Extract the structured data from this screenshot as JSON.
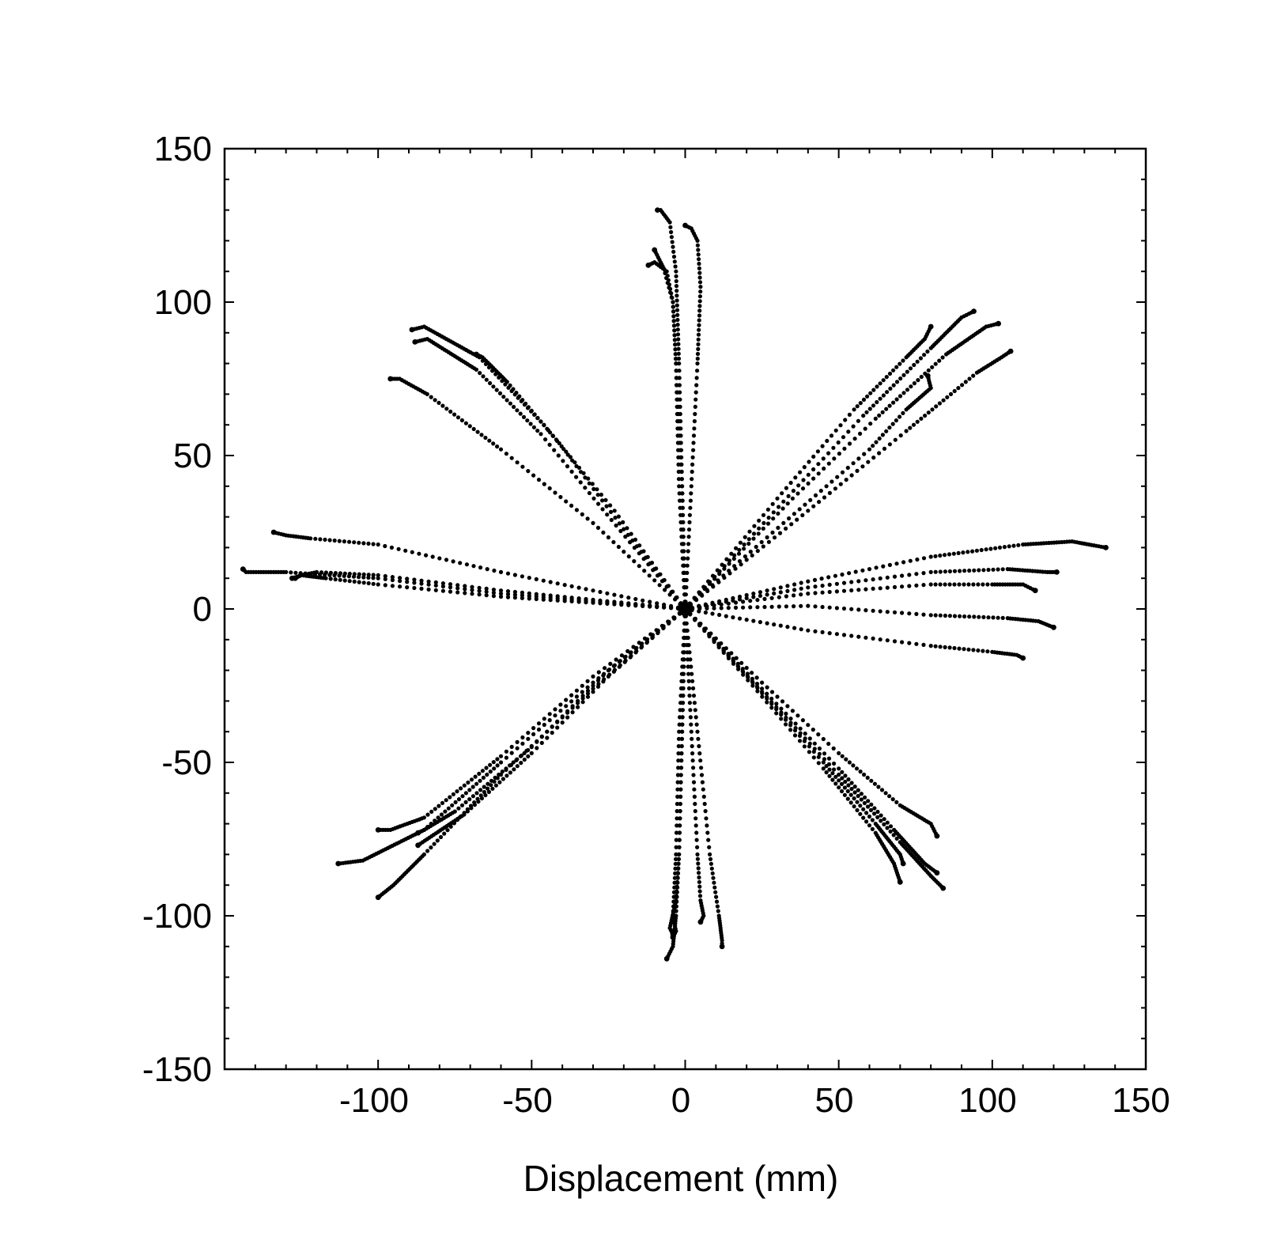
{
  "chart_data": {
    "type": "scatter",
    "title": "",
    "xlabel": "Displacement (mm)",
    "ylabel": "",
    "xlim": [
      -150,
      150
    ],
    "ylim": [
      -150,
      150
    ],
    "xticks": [
      -100,
      -50,
      0,
      50,
      100,
      150
    ],
    "yticks": [
      150,
      100,
      50,
      0,
      -50,
      -100,
      -150
    ],
    "xtick_labels": [
      "-100",
      "-50",
      "0",
      "50",
      "100",
      "150"
    ],
    "ytick_labels": [
      "150",
      "100",
      "50",
      "0",
      "-50",
      "-100",
      "-150"
    ],
    "grid": false,
    "legend": "none",
    "marker_color": "#000000",
    "series": [
      {
        "values": [
          [
            0,
            0
          ],
          [
            -2,
            40
          ],
          [
            -3,
            80
          ],
          [
            -4,
            100
          ],
          [
            -7,
            111
          ],
          [
            -8,
            113
          ],
          [
            -10,
            117
          ]
        ]
      },
      {
        "values": [
          [
            0,
            0
          ],
          [
            -1,
            40
          ],
          [
            -3,
            80
          ],
          [
            -4,
            100
          ],
          [
            -6,
            110
          ],
          [
            -10,
            113
          ],
          [
            -12,
            112
          ]
        ]
      },
      {
        "values": [
          [
            0,
            0
          ],
          [
            -1,
            40
          ],
          [
            -2,
            80
          ],
          [
            -3,
            110
          ],
          [
            -5,
            126
          ],
          [
            -8,
            130
          ],
          [
            -9,
            130
          ]
        ]
      },
      {
        "values": [
          [
            0,
            0
          ],
          [
            2,
            40
          ],
          [
            4,
            80
          ],
          [
            5,
            105
          ],
          [
            4,
            120
          ],
          [
            2,
            124
          ],
          [
            0,
            125
          ]
        ]
      },
      {
        "values": [
          [
            0,
            0
          ],
          [
            -23,
            32
          ],
          [
            -46,
            60
          ],
          [
            -67,
            82
          ],
          [
            -85,
            92
          ],
          [
            -89,
            91
          ]
        ]
      },
      {
        "values": [
          [
            0,
            0
          ],
          [
            -24,
            29
          ],
          [
            -47,
            57
          ],
          [
            -68,
            78
          ],
          [
            -84,
            88
          ],
          [
            -88,
            87
          ]
        ]
      },
      {
        "values": [
          [
            0,
            0
          ],
          [
            -20,
            26
          ],
          [
            -41,
            54
          ],
          [
            -58,
            74
          ],
          [
            -66,
            82
          ],
          [
            -68,
            83
          ]
        ]
      },
      {
        "values": [
          [
            0,
            0
          ],
          [
            -30,
            28
          ],
          [
            -60,
            52
          ],
          [
            -84,
            70
          ],
          [
            -93,
            75
          ],
          [
            -96,
            75
          ]
        ]
      },
      {
        "values": [
          [
            0,
            0
          ],
          [
            -60,
            12
          ],
          [
            -100,
            21
          ],
          [
            -122,
            23
          ],
          [
            -130,
            24
          ],
          [
            -134,
            25
          ]
        ]
      },
      {
        "values": [
          [
            0,
            0
          ],
          [
            -60,
            5
          ],
          [
            -100,
            10
          ],
          [
            -130,
            12
          ],
          [
            -143,
            12
          ],
          [
            -144,
            13
          ]
        ]
      },
      {
        "values": [
          [
            0,
            0
          ],
          [
            -60,
            4
          ],
          [
            -100,
            8
          ],
          [
            -117,
            10
          ],
          [
            -125,
            11
          ],
          [
            -127,
            10
          ]
        ]
      },
      {
        "values": [
          [
            0,
            0
          ],
          [
            -60,
            6
          ],
          [
            -100,
            11
          ],
          [
            -120,
            12
          ],
          [
            -125,
            11
          ],
          [
            -128,
            10
          ]
        ]
      },
      {
        "values": [
          [
            0,
            0
          ],
          [
            30,
            36
          ],
          [
            55,
            65
          ],
          [
            72,
            82
          ],
          [
            78,
            88
          ],
          [
            80,
            92
          ]
        ]
      },
      {
        "values": [
          [
            0,
            0
          ],
          [
            32,
            35
          ],
          [
            58,
            63
          ],
          [
            80,
            85
          ],
          [
            90,
            95
          ],
          [
            94,
            97
          ]
        ]
      },
      {
        "values": [
          [
            0,
            0
          ],
          [
            35,
            36
          ],
          [
            62,
            62
          ],
          [
            85,
            83
          ],
          [
            98,
            92
          ],
          [
            102,
            93
          ]
        ]
      },
      {
        "values": [
          [
            0,
            0
          ],
          [
            40,
            32
          ],
          [
            72,
            58
          ],
          [
            95,
            77
          ],
          [
            103,
            82
          ],
          [
            106,
            84
          ]
        ]
      },
      {
        "values": [
          [
            0,
            0
          ],
          [
            32,
            28
          ],
          [
            60,
            52
          ],
          [
            72,
            65
          ],
          [
            80,
            72
          ],
          [
            79,
            76
          ]
        ]
      },
      {
        "values": [
          [
            0,
            0
          ],
          [
            40,
            9
          ],
          [
            80,
            17
          ],
          [
            110,
            21
          ],
          [
            126,
            22
          ],
          [
            137,
            20
          ]
        ]
      },
      {
        "values": [
          [
            0,
            0
          ],
          [
            40,
            7
          ],
          [
            80,
            12
          ],
          [
            105,
            13
          ],
          [
            118,
            12
          ],
          [
            121,
            12
          ]
        ]
      },
      {
        "values": [
          [
            0,
            0
          ],
          [
            40,
            5
          ],
          [
            80,
            8
          ],
          [
            100,
            8
          ],
          [
            110,
            8
          ],
          [
            114,
            6
          ]
        ]
      },
      {
        "values": [
          [
            0,
            0
          ],
          [
            40,
            1
          ],
          [
            80,
            -2
          ],
          [
            105,
            -3
          ],
          [
            115,
            -4
          ],
          [
            120,
            -6
          ]
        ]
      },
      {
        "values": [
          [
            0,
            0
          ],
          [
            40,
            -7
          ],
          [
            80,
            -12
          ],
          [
            100,
            -14
          ],
          [
            108,
            -15
          ],
          [
            110,
            -16
          ]
        ]
      },
      {
        "values": [
          [
            0,
            0
          ],
          [
            25,
            -24
          ],
          [
            50,
            -47
          ],
          [
            70,
            -64
          ],
          [
            80,
            -70
          ],
          [
            82,
            -74
          ]
        ]
      },
      {
        "values": [
          [
            0,
            0
          ],
          [
            22,
            -24
          ],
          [
            45,
            -50
          ],
          [
            62,
            -70
          ],
          [
            70,
            -80
          ],
          [
            71,
            -83
          ]
        ]
      },
      {
        "values": [
          [
            0,
            0
          ],
          [
            22,
            -25
          ],
          [
            45,
            -52
          ],
          [
            62,
            -73
          ],
          [
            68,
            -83
          ],
          [
            70,
            -89
          ]
        ]
      },
      {
        "values": [
          [
            0,
            0
          ],
          [
            25,
            -26
          ],
          [
            50,
            -52
          ],
          [
            68,
            -72
          ],
          [
            78,
            -83
          ],
          [
            82,
            -86
          ]
        ]
      },
      {
        "values": [
          [
            0,
            0
          ],
          [
            25,
            -27
          ],
          [
            50,
            -54
          ],
          [
            70,
            -76
          ],
          [
            80,
            -87
          ],
          [
            84,
            -91
          ]
        ]
      },
      {
        "values": [
          [
            0,
            0
          ],
          [
            -25,
            -20
          ],
          [
            -50,
            -45
          ],
          [
            -75,
            -66
          ],
          [
            -85,
            -72
          ],
          [
            -87,
            -73
          ]
        ]
      },
      {
        "values": [
          [
            0,
            0
          ],
          [
            -25,
            -22
          ],
          [
            -50,
            -47
          ],
          [
            -72,
            -67
          ],
          [
            -84,
            -75
          ],
          [
            -87,
            -77
          ]
        ]
      },
      {
        "values": [
          [
            0,
            0
          ],
          [
            -30,
            -22
          ],
          [
            -60,
            -48
          ],
          [
            -85,
            -68
          ],
          [
            -96,
            -72
          ],
          [
            -100,
            -72
          ]
        ]
      },
      {
        "values": [
          [
            0,
            0
          ],
          [
            -30,
            -24
          ],
          [
            -60,
            -50
          ],
          [
            -85,
            -72
          ],
          [
            -105,
            -82
          ],
          [
            -113,
            -83
          ]
        ]
      },
      {
        "values": [
          [
            0,
            0
          ],
          [
            -30,
            -26
          ],
          [
            -60,
            -54
          ],
          [
            -85,
            -80
          ],
          [
            -95,
            -90
          ],
          [
            -100,
            -94
          ]
        ]
      },
      {
        "values": [
          [
            0,
            0
          ],
          [
            -2,
            -40
          ],
          [
            -3,
            -80
          ],
          [
            -4,
            -100
          ],
          [
            -3,
            -105
          ],
          [
            -4,
            -107
          ]
        ]
      },
      {
        "values": [
          [
            0,
            0
          ],
          [
            -1,
            -40
          ],
          [
            -2,
            -80
          ],
          [
            -3,
            -100
          ],
          [
            -4,
            -110
          ],
          [
            -6,
            -114
          ]
        ]
      },
      {
        "values": [
          [
            0,
            0
          ],
          [
            2,
            -40
          ],
          [
            4,
            -80
          ],
          [
            5,
            -95
          ],
          [
            6,
            -100
          ],
          [
            5,
            -102
          ]
        ]
      },
      {
        "values": [
          [
            0,
            0
          ],
          [
            4,
            -40
          ],
          [
            8,
            -80
          ],
          [
            11,
            -100
          ],
          [
            12,
            -108
          ],
          [
            12,
            -110
          ]
        ]
      },
      {
        "values": [
          [
            0,
            0
          ],
          [
            -1,
            -40
          ],
          [
            -2,
            -80
          ],
          [
            -3,
            -95
          ],
          [
            -5,
            -104
          ],
          [
            -4,
            -106
          ]
        ]
      }
    ]
  }
}
